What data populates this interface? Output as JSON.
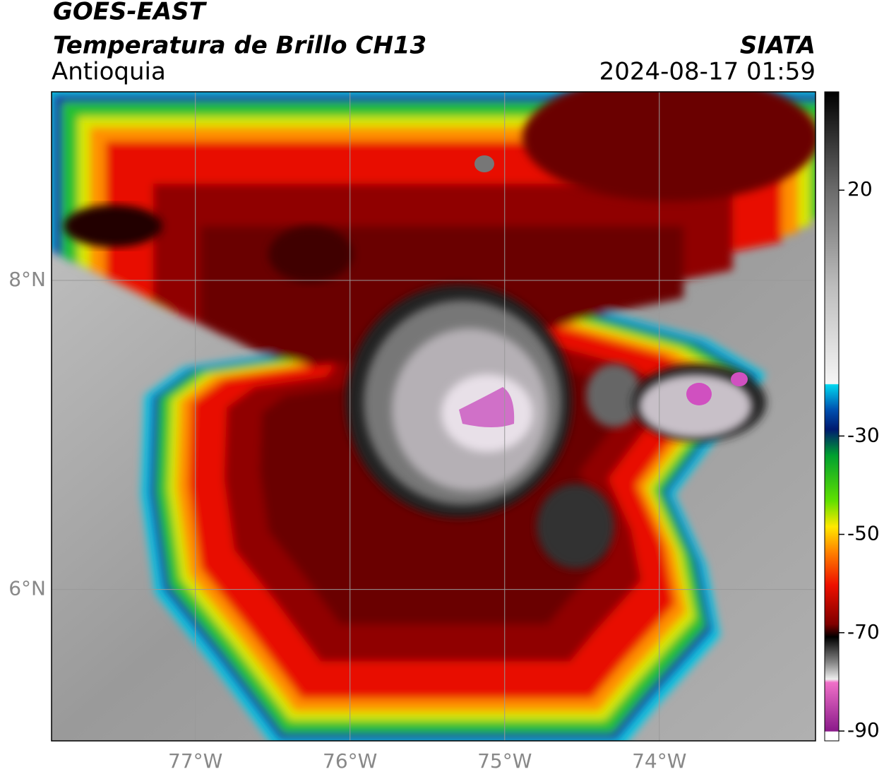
{
  "header": {
    "title": "GOES-EAST",
    "subtitle": "Temperatura de Brillo CH13",
    "region": "Antioquia",
    "source": "SIATA",
    "datetime": "2024-08-17 01:59"
  },
  "map": {
    "xlim": [
      -77.93,
      -72.99
    ],
    "ylim": [
      5.02,
      9.22
    ],
    "xticks": [
      {
        "value": -77,
        "label": "77°W"
      },
      {
        "value": -76,
        "label": "76°W"
      },
      {
        "value": -75,
        "label": "75°W"
      },
      {
        "value": -74,
        "label": "74°W"
      }
    ],
    "yticks": [
      {
        "value": 8,
        "label": "8°N"
      },
      {
        "value": 6,
        "label": "6°N"
      }
    ],
    "grid": true
  },
  "colorbar": {
    "lim": [
      -92,
      40
    ],
    "ticks": [
      20,
      -30,
      -50,
      -70,
      -90
    ]
  }
}
